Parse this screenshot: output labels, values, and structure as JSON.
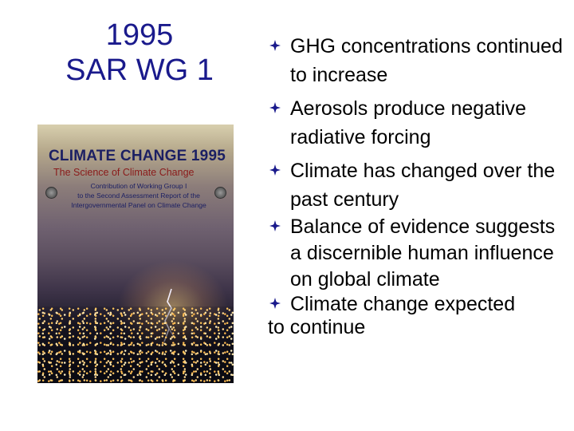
{
  "title": {
    "line1": "1995",
    "line2": "SAR WG 1"
  },
  "cover": {
    "heading": "CLIMATE CHANGE 1995",
    "subheading": "The Science of Climate Change",
    "contrib_lines": [
      "Contribution of Working Group I",
      "to the Second Assessment Report of the",
      "Intergovernmental Panel on Climate Change"
    ],
    "logo_left": "wmo-logo-icon",
    "logo_right": "unep-logo-icon"
  },
  "bullets": [
    {
      "text": "GHG concentrations continued to increase"
    },
    {
      "text": "Aerosols produce negative radiative forcing"
    },
    {
      "text": "Climate has changed over the past century"
    },
    {
      "text": "Balance of evidence suggests a discernible human influence on global climate"
    },
    {
      "line1": "Climate change expected",
      "line2": "to continue"
    }
  ],
  "colors": {
    "title": "#1a1a8c",
    "bullet_marker": "#1a1a8c",
    "text": "#000000",
    "background": "#ffffff"
  }
}
